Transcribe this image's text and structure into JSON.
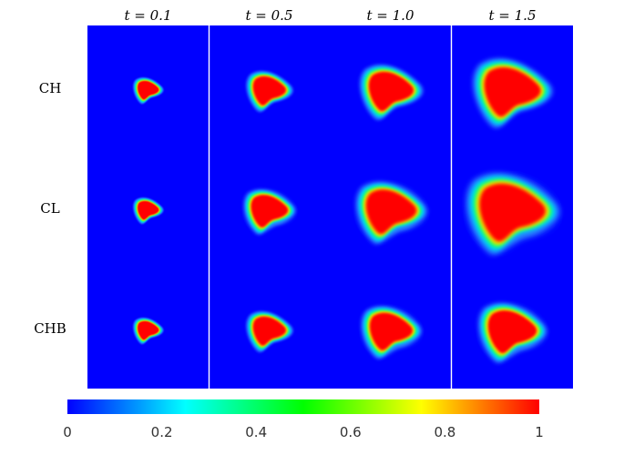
{
  "columns": [
    "t = 0.1",
    "t = 0.5",
    "t = 1.0",
    "t = 1.5"
  ],
  "rows": [
    "CH",
    "CL",
    "CHB"
  ],
  "colorbar": {
    "ticks": [
      "0",
      "0.2",
      "0.4",
      "0.6",
      "0.8",
      "1"
    ],
    "colors": [
      "#0000ff",
      "#00ffff",
      "#00ff00",
      "#ffff00",
      "#ff0000"
    ]
  },
  "field": {
    "background_color": "#0000ff",
    "scale": {
      "CH": [
        0.55,
        0.85,
        1.15,
        1.45
      ],
      "CL": [
        0.55,
        0.95,
        1.3,
        1.7
      ],
      "CHB": [
        0.55,
        0.85,
        1.1,
        1.25
      ]
    },
    "halo": {
      "CH": [
        0,
        0,
        0,
        0
      ],
      "CL": [
        0,
        1,
        1,
        1
      ],
      "CHB": [
        0,
        0,
        1,
        1
      ]
    }
  }
}
